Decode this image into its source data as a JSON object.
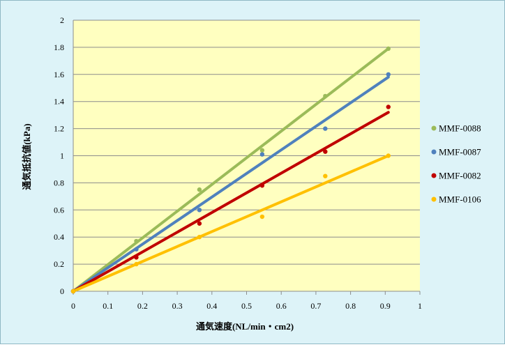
{
  "chart_data": {
    "type": "scatter",
    "title": "",
    "xlabel": "通気速度(NL/min・cm2)",
    "ylabel": "通気抵抗値(kPa)",
    "xlim": [
      0,
      1
    ],
    "ylim": [
      0,
      2
    ],
    "xticks": [
      "0",
      "0.1",
      "0.2",
      "0.3",
      "0.4",
      "0.5",
      "0.6",
      "0.7",
      "0.8",
      "0.9",
      "1"
    ],
    "yticks": [
      "0",
      "0.2",
      "0.4",
      "0.6",
      "0.8",
      "1",
      "1.2",
      "1.4",
      "1.6",
      "1.8",
      "2"
    ],
    "grid": "horizontal",
    "legend_position": "right",
    "trendlines": "linear",
    "plot_background": "#ffffc0",
    "chart_background": "#ddf3f8",
    "series": [
      {
        "name": "MMF-0088",
        "color": "#9bbb59",
        "x": [
          0,
          0.182,
          0.364,
          0.545,
          0.727,
          0.909
        ],
        "y": [
          0,
          0.37,
          0.75,
          1.04,
          1.44,
          1.79
        ],
        "trend_end": 1.79
      },
      {
        "name": "MMF-0087",
        "color": "#4f81bd",
        "x": [
          0,
          0.182,
          0.364,
          0.545,
          0.727,
          0.909
        ],
        "y": [
          0,
          0.31,
          0.6,
          1.01,
          1.2,
          1.6
        ],
        "trend_end": 1.58
      },
      {
        "name": "MMF-0082",
        "color": "#c00000",
        "x": [
          0,
          0.182,
          0.364,
          0.545,
          0.727,
          0.909
        ],
        "y": [
          0,
          0.25,
          0.5,
          0.78,
          1.03,
          1.36
        ],
        "trend_end": 1.32
      },
      {
        "name": "MMF-0106",
        "color": "#ffc000",
        "x": [
          0,
          0.182,
          0.364,
          0.545,
          0.727,
          0.909
        ],
        "y": [
          0,
          0.2,
          0.4,
          0.55,
          0.85,
          1.0
        ],
        "trend_end": 1.0
      }
    ]
  }
}
